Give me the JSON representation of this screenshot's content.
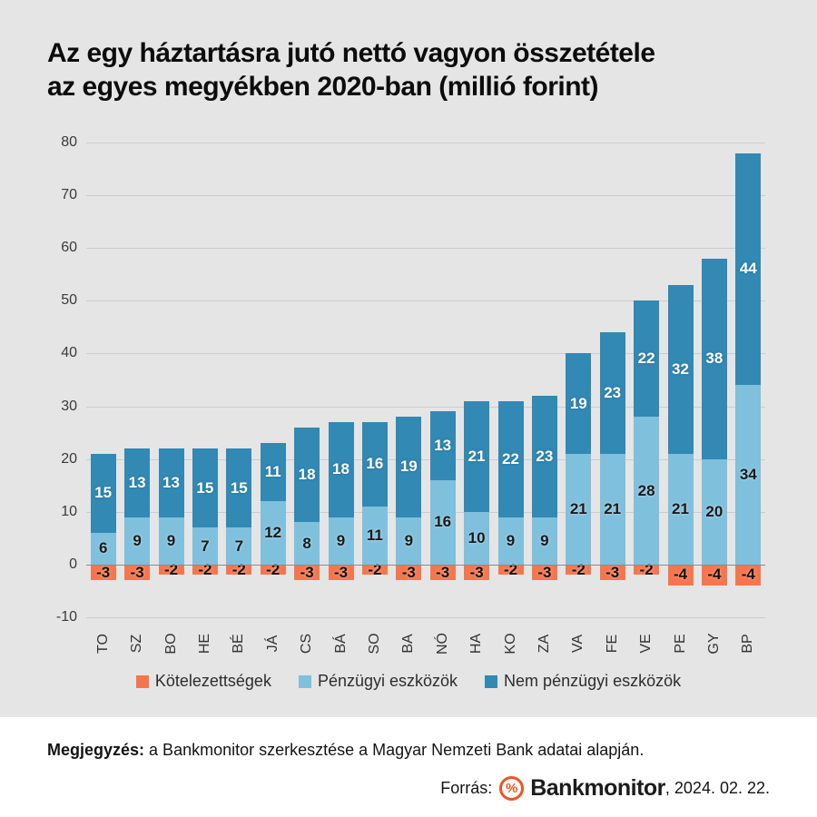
{
  "chart_data": {
    "type": "bar",
    "stacked": true,
    "title": "Az egy háztartásra jutó nettó vagyon összetétele az egyes megyékben 2020-ban (millió forint)",
    "title_lines": [
      "Az egy háztartásra jutó nettó vagyon összetétele",
      "az egyes megyékben 2020-ban (millió forint)"
    ],
    "categories": [
      "TO",
      "SZ",
      "BO",
      "HE",
      "BÉ",
      "JÁ",
      "CS",
      "BÁ",
      "SO",
      "BA",
      "NÓ",
      "HA",
      "KO",
      "ZA",
      "VA",
      "FE",
      "VE",
      "PE",
      "GY",
      "BP"
    ],
    "series": [
      {
        "name": "Kötelezettségek",
        "color": "#f5764e",
        "values": [
          -3,
          -3,
          -2,
          -2,
          -2,
          -2,
          -3,
          -3,
          -2,
          -3,
          -3,
          -3,
          -2,
          -3,
          -2,
          -3,
          -2,
          -4,
          -4,
          -4
        ]
      },
      {
        "name": "Pénzügyi eszközök",
        "color": "#7fc0dd",
        "values": [
          6,
          9,
          9,
          7,
          7,
          12,
          8,
          9,
          11,
          9,
          16,
          10,
          9,
          9,
          21,
          21,
          28,
          21,
          20,
          34
        ]
      },
      {
        "name": "Nem pénzügyi eszközök",
        "color": "#3189b4",
        "values": [
          15,
          13,
          13,
          15,
          15,
          11,
          18,
          18,
          16,
          19,
          13,
          21,
          22,
          23,
          19,
          23,
          22,
          32,
          38,
          44
        ]
      }
    ],
    "ylim": [
      -10,
      80
    ],
    "ytick_step": 10,
    "grid": true,
    "legend_position": "bottom"
  },
  "footer": {
    "note_label": "Megjegyzés:",
    "note_text": "a Bankmonitor szerkesztése a Magyar Nemzeti Bank adatai alapján.",
    "source_label": "Forrás:",
    "logo_glyph": "%",
    "brand": "Bankmonitor",
    "brand_suffix": ", 2024. 02. 22.",
    "brand_color": "#ee5423"
  }
}
